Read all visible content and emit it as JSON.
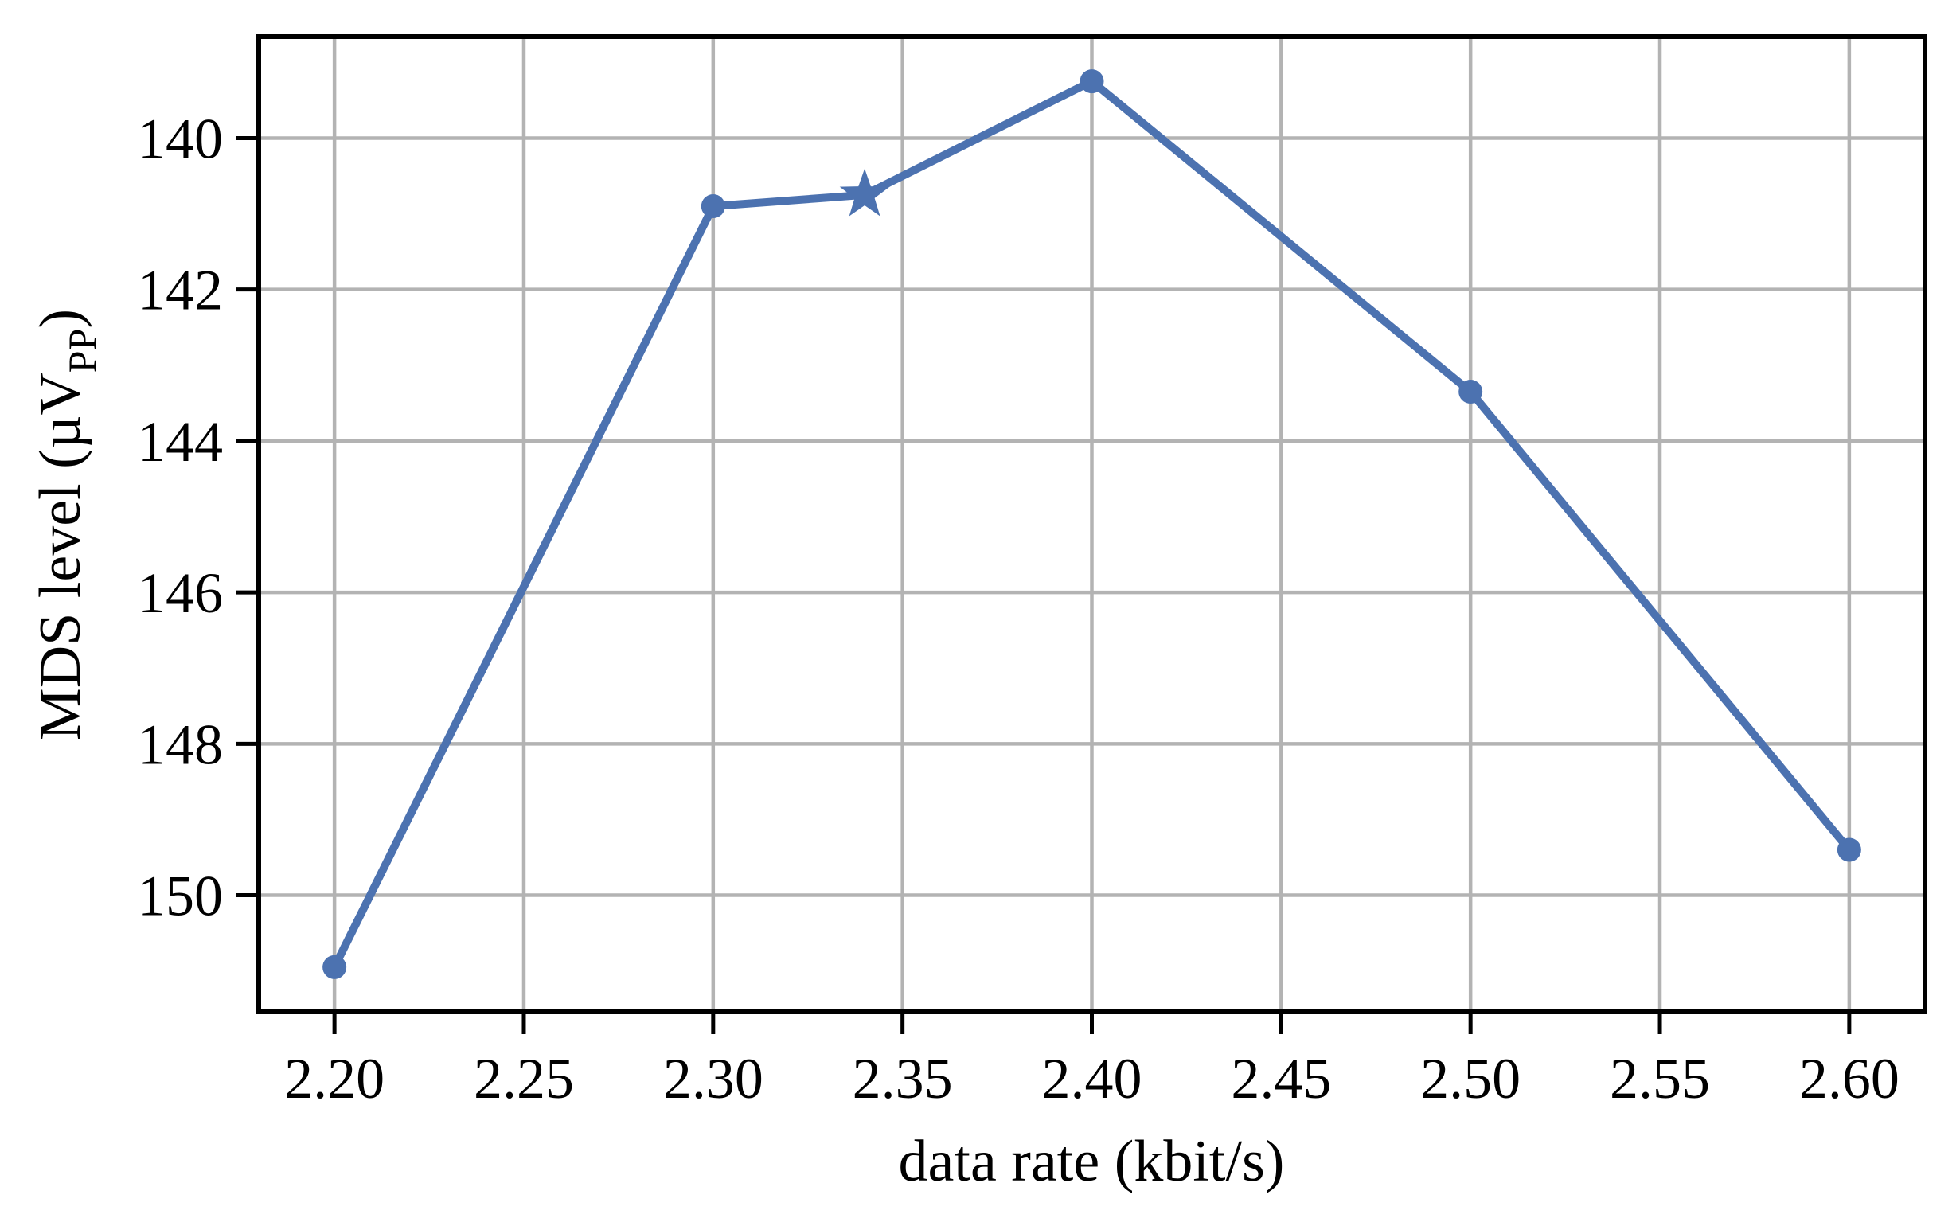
{
  "figure": {
    "background": "#ffffff"
  },
  "chart_data": {
    "type": "line",
    "title": "",
    "xlabel": "data rate (kbit/s)",
    "ylabel": {
      "text": "MDS level (µV",
      "subscript": "PP",
      "suffix": ")"
    },
    "xlim": [
      2.18,
      2.62
    ],
    "ylim_top_to_bottom": [
      138.66,
      151.54
    ],
    "y_axis_inverted": true,
    "grid": true,
    "legend": "none",
    "xticks": {
      "values": [
        2.2,
        2.25,
        2.3,
        2.35,
        2.4,
        2.45,
        2.5,
        2.55,
        2.6
      ],
      "labels": [
        "2.20",
        "2.25",
        "2.30",
        "2.35",
        "2.40",
        "2.45",
        "2.50",
        "2.55",
        "2.60"
      ]
    },
    "yticks": {
      "values": [
        140,
        142,
        144,
        146,
        148,
        150
      ],
      "labels": [
        "140",
        "142",
        "144",
        "146",
        "148",
        "150"
      ]
    },
    "series": [
      {
        "name": "MDS level vs data rate",
        "color": "#4C72B0",
        "line_width": 10,
        "points": [
          {
            "x": 2.2,
            "y": 150.95,
            "marker": "circle"
          },
          {
            "x": 2.3,
            "y": 140.9,
            "marker": "circle"
          },
          {
            "x": 2.34,
            "y": 140.75,
            "marker": "star"
          },
          {
            "x": 2.4,
            "y": 139.25,
            "marker": "circle"
          },
          {
            "x": 2.5,
            "y": 143.35,
            "marker": "circle"
          },
          {
            "x": 2.6,
            "y": 149.4,
            "marker": "circle"
          }
        ]
      }
    ],
    "colors": {
      "line": "#4C72B0",
      "grid": "#b3b3b3",
      "axis": "#000000",
      "text": "#000000",
      "background": "#ffffff"
    },
    "marker_style": {
      "circle_radius": 15,
      "star_outer_radius": 33,
      "star_inner_ratio": 0.4
    }
  }
}
